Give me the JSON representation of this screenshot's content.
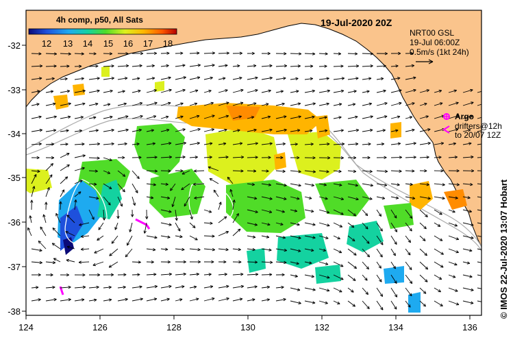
{
  "map_title": "19-Jul-2020 20Z",
  "colorbar": {
    "title": "4h comp, p50, All Sats",
    "ticks": [
      "12",
      "13",
      "14",
      "15",
      "16",
      "17",
      "18"
    ]
  },
  "velocity_legend": {
    "line1": "NRT00 GSL",
    "line2": "19-Jul 06:00Z",
    "line3": "0.5m/s (1kt 24h)"
  },
  "argo_legend": {
    "argo_label": "Argo",
    "drifter_line1": "drifters@12h",
    "drifter_line2": "to 20/07 12Z"
  },
  "credit": "© IMOS 22-Jul-2020 13:07 Hobart",
  "axes": {
    "x_ticks": [
      "124",
      "126",
      "128",
      "130",
      "132",
      "134",
      "136"
    ],
    "y_ticks": [
      "-32",
      "-33",
      "-34",
      "-35",
      "-36",
      "-37",
      "-38"
    ]
  },
  "colors": {
    "land": "#fac48c",
    "ocean": "#ffffff",
    "argo": "#ff00ff",
    "colormap": [
      "#0a0a78",
      "#1e50dc",
      "#1eaaf0",
      "#14d2a0",
      "#50dc28",
      "#dcf01e",
      "#ffb400",
      "#ff5a00",
      "#b40000"
    ]
  }
}
